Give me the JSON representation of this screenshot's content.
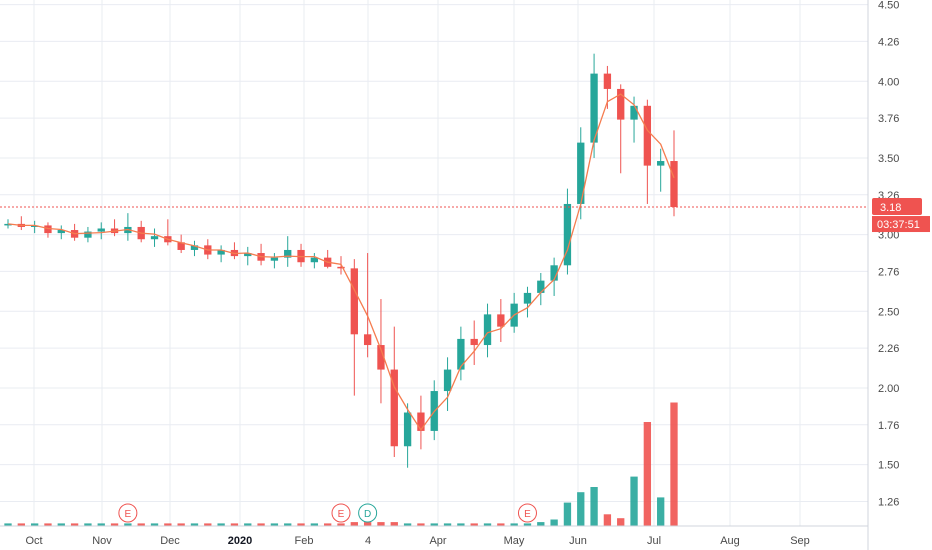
{
  "chart_data": {
    "type": "candlestick",
    "y_axis_ticks": [
      "4.50",
      "4.26",
      "4.00",
      "3.76",
      "3.50",
      "3.26",
      "3.00",
      "2.76",
      "2.50",
      "2.26",
      "2.00",
      "1.76",
      "1.50",
      "1.26"
    ],
    "y_axis_ticks_num": [
      4.5,
      4.26,
      4.0,
      3.76,
      3.5,
      3.26,
      3.0,
      2.76,
      2.5,
      2.26,
      2.0,
      1.76,
      1.5,
      1.26
    ],
    "ylim": [
      1.1,
      4.53
    ],
    "x_axis_labels": [
      {
        "label": "Oct",
        "bold": false
      },
      {
        "label": "Nov",
        "bold": false
      },
      {
        "label": "Dec",
        "bold": false
      },
      {
        "label": "2020",
        "bold": true
      },
      {
        "label": "Feb",
        "bold": false
      },
      {
        "label": "4",
        "bold": false
      },
      {
        "label": "Apr",
        "bold": false
      },
      {
        "label": "May",
        "bold": false
      },
      {
        "label": "Jun",
        "bold": false
      },
      {
        "label": "Jul",
        "bold": false
      },
      {
        "label": "Aug",
        "bold": false
      },
      {
        "label": "Sep",
        "bold": false
      }
    ],
    "current_price": {
      "value": 3.18,
      "label": "3.18",
      "countdown": "03:37:51"
    },
    "events": [
      {
        "type": "E",
        "date_index": 9
      },
      {
        "type": "E",
        "date_index": 25
      },
      {
        "type": "D",
        "date_index": 27
      },
      {
        "type": "E",
        "date_index": 39
      }
    ],
    "colors": {
      "up": "#26a69a",
      "down": "#ef5350",
      "ma": "#f57c4f",
      "price_line": "#ef5350",
      "grid": "#e9ecf2",
      "axis_text": "#4a4a4a"
    },
    "weekly_ohlc": [
      [
        3.06,
        3.1,
        3.04,
        3.07
      ],
      [
        3.07,
        3.12,
        3.03,
        3.05
      ],
      [
        3.05,
        3.09,
        3.01,
        3.06
      ],
      [
        3.06,
        3.08,
        2.98,
        3.01
      ],
      [
        3.01,
        3.06,
        2.97,
        3.03
      ],
      [
        3.03,
        3.07,
        2.96,
        2.98
      ],
      [
        2.98,
        3.05,
        2.95,
        3.02
      ],
      [
        3.02,
        3.08,
        2.97,
        3.04
      ],
      [
        3.04,
        3.1,
        2.99,
        3.01
      ],
      [
        3.01,
        3.14,
        2.96,
        3.05
      ],
      [
        3.05,
        3.09,
        2.95,
        2.97
      ],
      [
        2.97,
        3.04,
        2.92,
        2.99
      ],
      [
        2.99,
        3.1,
        2.93,
        2.95
      ],
      [
        2.95,
        3.0,
        2.88,
        2.9
      ],
      [
        2.9,
        2.96,
        2.86,
        2.93
      ],
      [
        2.93,
        2.97,
        2.84,
        2.87
      ],
      [
        2.87,
        2.93,
        2.82,
        2.9
      ],
      [
        2.9,
        2.95,
        2.84,
        2.86
      ],
      [
        2.86,
        2.92,
        2.8,
        2.88
      ],
      [
        2.88,
        2.94,
        2.8,
        2.83
      ],
      [
        2.83,
        2.88,
        2.78,
        2.85
      ],
      [
        2.85,
        2.99,
        2.79,
        2.9
      ],
      [
        2.9,
        2.94,
        2.79,
        2.82
      ],
      [
        2.82,
        2.88,
        2.78,
        2.85
      ],
      [
        2.85,
        2.9,
        2.78,
        2.79
      ],
      [
        2.79,
        2.86,
        2.74,
        2.78
      ],
      [
        2.78,
        2.84,
        1.95,
        2.35
      ],
      [
        2.35,
        2.88,
        2.2,
        2.28
      ],
      [
        2.28,
        2.58,
        1.9,
        2.12
      ],
      [
        2.12,
        2.4,
        1.55,
        1.62
      ],
      [
        1.62,
        1.9,
        1.48,
        1.84
      ],
      [
        1.84,
        1.95,
        1.6,
        1.72
      ],
      [
        1.72,
        2.05,
        1.66,
        1.98
      ],
      [
        1.98,
        2.2,
        1.85,
        2.12
      ],
      [
        2.12,
        2.4,
        2.05,
        2.32
      ],
      [
        2.32,
        2.44,
        2.15,
        2.28
      ],
      [
        2.28,
        2.55,
        2.2,
        2.48
      ],
      [
        2.48,
        2.58,
        2.3,
        2.4
      ],
      [
        2.4,
        2.62,
        2.36,
        2.55
      ],
      [
        2.55,
        2.66,
        2.46,
        2.62
      ],
      [
        2.62,
        2.75,
        2.54,
        2.7
      ],
      [
        2.7,
        2.85,
        2.6,
        2.8
      ],
      [
        2.8,
        3.3,
        2.74,
        3.2
      ],
      [
        3.2,
        3.7,
        3.1,
        3.6
      ],
      [
        3.6,
        4.18,
        3.5,
        4.05
      ],
      [
        4.05,
        4.1,
        3.82,
        3.95
      ],
      [
        3.95,
        3.98,
        3.4,
        3.75
      ],
      [
        3.75,
        3.9,
        3.6,
        3.84
      ],
      [
        3.84,
        3.88,
        3.2,
        3.45
      ],
      [
        3.45,
        3.56,
        3.28,
        3.48
      ],
      [
        3.48,
        3.68,
        3.12,
        3.18
      ]
    ],
    "volume": [
      0.02,
      0.02,
      0.02,
      0.02,
      0.02,
      0.02,
      0.02,
      0.02,
      0.02,
      0.02,
      0.02,
      0.02,
      0.02,
      0.02,
      0.02,
      0.02,
      0.02,
      0.02,
      0.02,
      0.02,
      0.02,
      0.02,
      0.02,
      0.02,
      0.02,
      0.02,
      0.03,
      0.03,
      0.03,
      0.03,
      0.02,
      0.02,
      0.02,
      0.02,
      0.02,
      0.02,
      0.02,
      0.02,
      0.02,
      0.02,
      0.03,
      0.05,
      0.18,
      0.26,
      0.3,
      0.09,
      0.06,
      0.38,
      0.8,
      0.22,
      0.95
    ]
  }
}
